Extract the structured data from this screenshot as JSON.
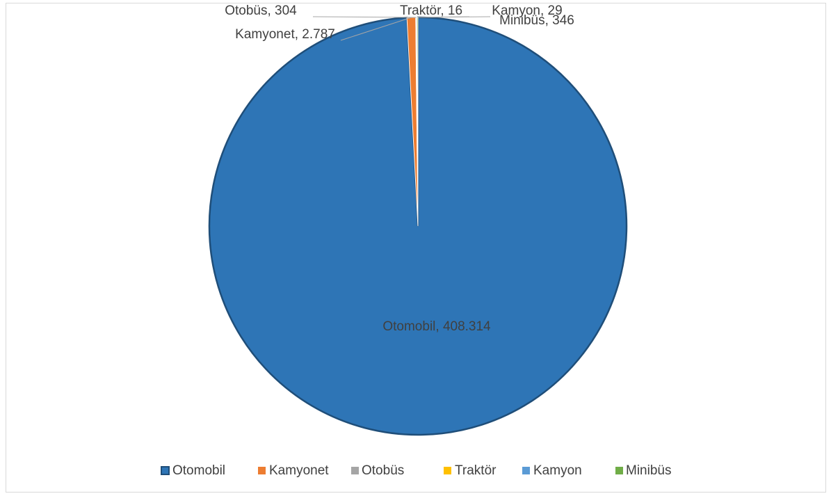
{
  "chart_data": {
    "type": "pie",
    "categories": [
      "Otomobil",
      "Kamyonet",
      "Otobüs",
      "Traktör",
      "Kamyon",
      "Minibüs"
    ],
    "values": [
      408314,
      2787,
      304,
      16,
      29,
      346
    ],
    "value_labels": [
      "Otomobil, 408.314",
      "Kamyonet, 2.787",
      "Otobüs, 304",
      "Traktör, 16",
      "Kamyon, 29",
      "Minibüs, 346"
    ],
    "colors": [
      "#2e75b6",
      "#ed7d31",
      "#a5a5a5",
      "#ffc000",
      "#5b9bd5",
      "#70ad47"
    ],
    "legend": "bottom"
  }
}
